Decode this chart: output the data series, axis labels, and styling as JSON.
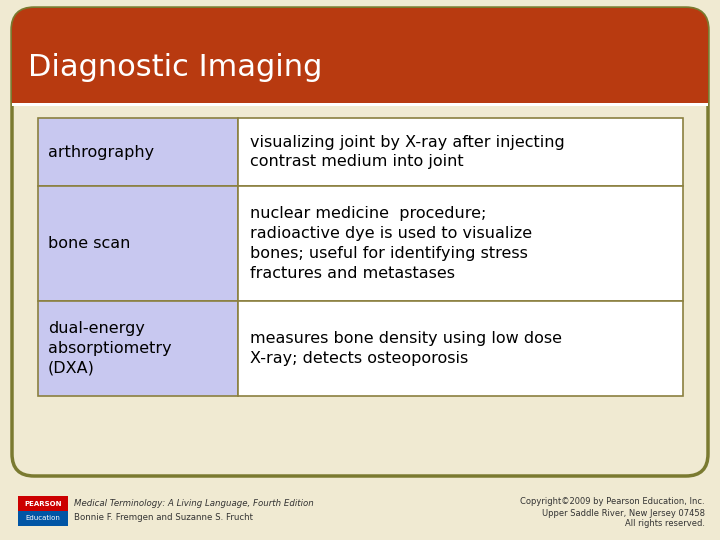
{
  "title": "Diagnostic Imaging",
  "bg_color": "#f0ead2",
  "header_color": "#b83a10",
  "header_text_color": "#ffffff",
  "table_border_color": "#8b8040",
  "cell_left_bg": "#c8c8f0",
  "cell_right_bg": "#ffffff",
  "rows": [
    {
      "term": "arthrography",
      "definition": "visualizing joint by X-ray after injecting\ncontrast medium into joint"
    },
    {
      "term": "bone scan",
      "definition": "nuclear medicine  procedure;\nradioactive dye is used to visualize\nbones; useful for identifying stress\nfractures and metastases"
    },
    {
      "term": "dual-energy\nabsorptiometry\n(DXA)",
      "definition": "measures bone density using low dose\nX-ray; detects osteoporosis"
    }
  ],
  "footer_left_line1": "Medical Terminology: A Living Language, Fourth Edition",
  "footer_left_line2": "Bonnie F. Fremgen and Suzanne S. Frucht",
  "footer_right_line1": "Copyright©2009 by Pearson Education, Inc.",
  "footer_right_line2": "Upper Saddle River, New Jersey 07458",
  "footer_right_line3": "All rights reserved.",
  "outer_border_color": "#7a7a30",
  "title_font_size": 22,
  "cell_font_size": 11.5
}
